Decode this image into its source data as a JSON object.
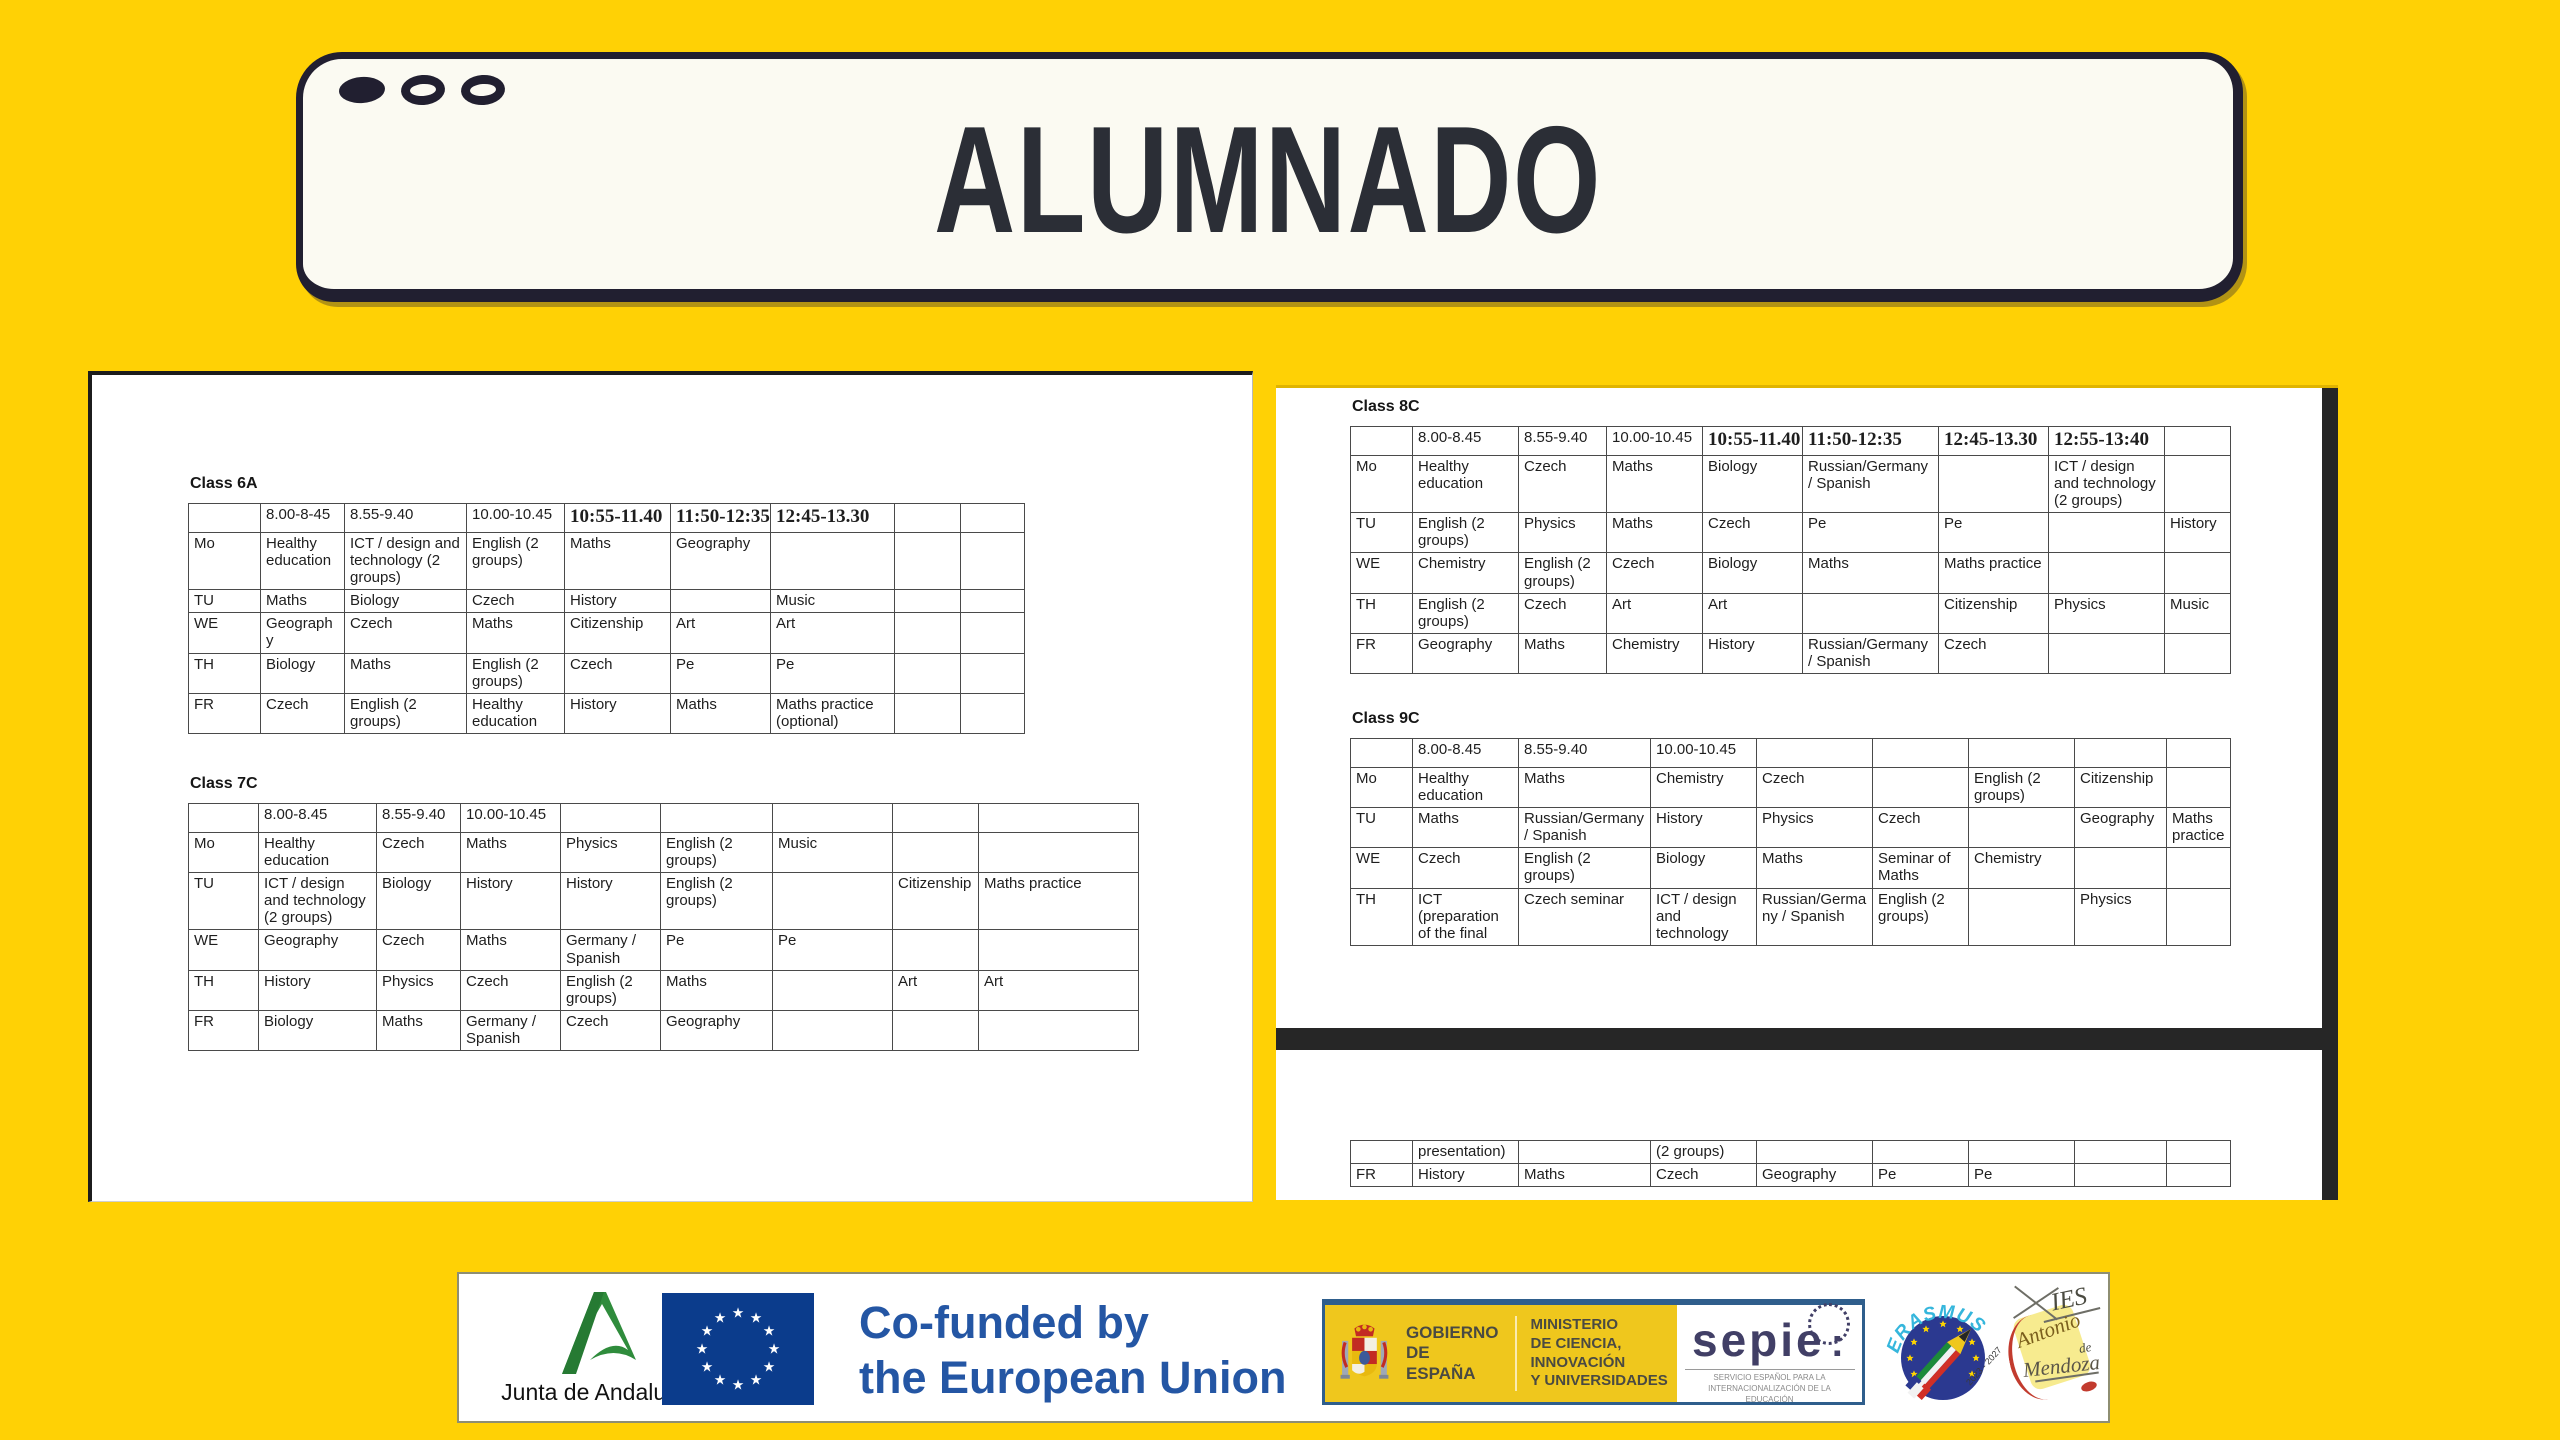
{
  "title": {
    "text": "ALUMNADO"
  },
  "timetables": [
    {
      "class_label": "Class 6A",
      "header": [
        "",
        "8.00-8-45",
        "8.55-9.40",
        "10.00-10.45",
        "10:55-11.40",
        "11:50-12:35",
        "12:45-13.30",
        "",
        ""
      ],
      "bold_header_cols": [
        4,
        5,
        6
      ],
      "rows": [
        {
          "day": "Mo",
          "cells": [
            "Healthy education",
            "ICT / design and technology (2 groups)",
            "English (2 groups)",
            "Maths",
            "Geography",
            "",
            "",
            ""
          ]
        },
        {
          "day": "TU",
          "cells": [
            "Maths",
            "Biology",
            "Czech",
            "History",
            "",
            "Music",
            "",
            ""
          ]
        },
        {
          "day": "WE",
          "cells": [
            "Geography",
            "Czech",
            "Maths",
            "Citizenship",
            "Art",
            "Art",
            "",
            ""
          ]
        },
        {
          "day": "TH",
          "cells": [
            "Biology",
            "Maths",
            "English (2 groups)",
            "Czech",
            "Pe",
            "Pe",
            "",
            ""
          ]
        },
        {
          "day": "FR",
          "cells": [
            "Czech",
            "English (2 groups)",
            "Healthy education",
            "History",
            "Maths",
            "Maths practice (optional)",
            "",
            ""
          ]
        }
      ]
    },
    {
      "class_label": "Class 7C",
      "header": [
        "",
        "8.00-8.45",
        "8.55-9.40",
        "10.00-10.45",
        "",
        "",
        "",
        "",
        ""
      ],
      "bold_header_cols": [],
      "rows": [
        {
          "day": "Mo",
          "cells": [
            "Healthy education",
            "Czech",
            "Maths",
            "Physics",
            "English (2 groups)",
            "Music",
            "",
            ""
          ]
        },
        {
          "day": "TU",
          "cells": [
            "ICT / design and technology (2 groups)",
            "Biology",
            "History",
            "History",
            "English (2 groups)",
            "",
            "Citizenship",
            "Maths practice"
          ]
        },
        {
          "day": "WE",
          "cells": [
            "Geography",
            "Czech",
            "Maths",
            "Germany / Spanish",
            "Pe",
            "Pe",
            "",
            ""
          ]
        },
        {
          "day": "TH",
          "cells": [
            "History",
            "Physics",
            "Czech",
            "English (2 groups)",
            "Maths",
            "",
            "Art",
            "Art"
          ]
        },
        {
          "day": "FR",
          "cells": [
            "Biology",
            "Maths",
            "Germany / Spanish",
            "Czech",
            "Geography",
            "",
            "",
            ""
          ]
        }
      ]
    },
    {
      "class_label": "Class 8C",
      "header": [
        "",
        "8.00-8.45",
        "8.55-9.40",
        "10.00-10.45",
        "10:55-11.40",
        "11:50-12:35",
        "12:45-13.30",
        "12:55-13:40",
        ""
      ],
      "bold_header_cols": [
        4,
        5,
        6,
        7
      ],
      "rows": [
        {
          "day": "Mo",
          "cells": [
            "Healthy education",
            "Czech",
            "Maths",
            "Biology",
            "Russian/Germany / Spanish",
            "",
            "ICT / design and technology (2 groups)",
            ""
          ]
        },
        {
          "day": "TU",
          "cells": [
            "English (2 groups)",
            "Physics",
            "Maths",
            "Czech",
            "Pe",
            "Pe",
            "",
            "History"
          ]
        },
        {
          "day": "WE",
          "cells": [
            "Chemistry",
            "English (2 groups)",
            "Czech",
            "Biology",
            "Maths",
            "Maths practice",
            "",
            ""
          ]
        },
        {
          "day": "TH",
          "cells": [
            "English (2 groups)",
            "Czech",
            "Art",
            "Art",
            "",
            "Citizenship",
            "Physics",
            "Music"
          ]
        },
        {
          "day": "FR",
          "cells": [
            "Geography",
            "Maths",
            "Chemistry",
            "History",
            "Russian/Germany / Spanish",
            "Czech",
            "",
            ""
          ]
        }
      ]
    },
    {
      "class_label": "Class 9C",
      "header": [
        "",
        "8.00-8.45",
        "8.55-9.40",
        "10.00-10.45",
        "",
        "",
        "",
        "",
        ""
      ],
      "bold_header_cols": [],
      "rows": [
        {
          "day": "Mo",
          "cells": [
            "Healthy education",
            "Maths",
            "Chemistry",
            "Czech",
            "",
            "English (2 groups)",
            "Citizenship",
            ""
          ]
        },
        {
          "day": "TU",
          "cells": [
            "Maths",
            "Russian/Germany / Spanish",
            "History",
            "Physics",
            "Czech",
            "",
            "Geography",
            "Maths practice"
          ]
        },
        {
          "day": "WE",
          "cells": [
            "Czech",
            "English (2 groups)",
            "Biology",
            "Maths",
            "Seminar of Maths",
            "Chemistry",
            "",
            ""
          ]
        },
        {
          "day": "TH",
          "cells": [
            "ICT (preparation of the final",
            "Czech seminar",
            "ICT / design and technology",
            "Russian/Germany / Spanish",
            "English (2 groups)",
            "",
            "Physics",
            ""
          ]
        }
      ]
    }
  ],
  "continuation_table": {
    "rows": [
      {
        "day": "",
        "cells": [
          "presentation)",
          "",
          "(2 groups)",
          "",
          "",
          "",
          "",
          ""
        ]
      },
      {
        "day": "FR",
        "cells": [
          "History",
          "Maths",
          "Czech",
          "Geography",
          "Pe",
          "Pe",
          "",
          ""
        ]
      }
    ]
  },
  "footer": {
    "junta": {
      "label": "Junta de Andalucía"
    },
    "eu": {
      "line1": "Co-funded by",
      "line2": "the European Union"
    },
    "gobierno": {
      "line1": "GOBIERNO",
      "line2": "DE ESPAÑA"
    },
    "ministerio": {
      "line1": "MINISTERIO",
      "line2": "DE CIENCIA, INNOVACIÓN",
      "line3": "Y UNIVERSIDADES"
    },
    "sepie": {
      "logo": "sepie",
      "sub1": "SERVICIO ESPAÑOL PARA LA",
      "sub2": "INTERNACIONALIZACIÓN DE LA EDUCACIÓN"
    },
    "erasmus": {
      "name": "ERASMUS",
      "years": "2023 - 2027"
    },
    "ies": {
      "line1": "IES",
      "line2": "Antonio",
      "line3": "de",
      "line4": "Mendoza"
    }
  },
  "colors": {
    "background": "#FFD105",
    "panel": "#FFFFFF",
    "ink": "#211F30",
    "title_ink": "#2B2E36",
    "table_border": "#4A4A4A",
    "eu_flag_blue": "#0B3C8C",
    "cofunded_blue": "#2456A4",
    "gobierno_yellow": "#EFC71D",
    "gobierno_border_navy": "#2F5E8C",
    "sepie_blue": "#413F66",
    "erasmus_cyan": "#35B6DC",
    "erasmus_disc_blue": "#2B3990",
    "star_yellow": "#FFD500",
    "junta_green": "#2F8C3C",
    "divider_black": "#262626"
  }
}
